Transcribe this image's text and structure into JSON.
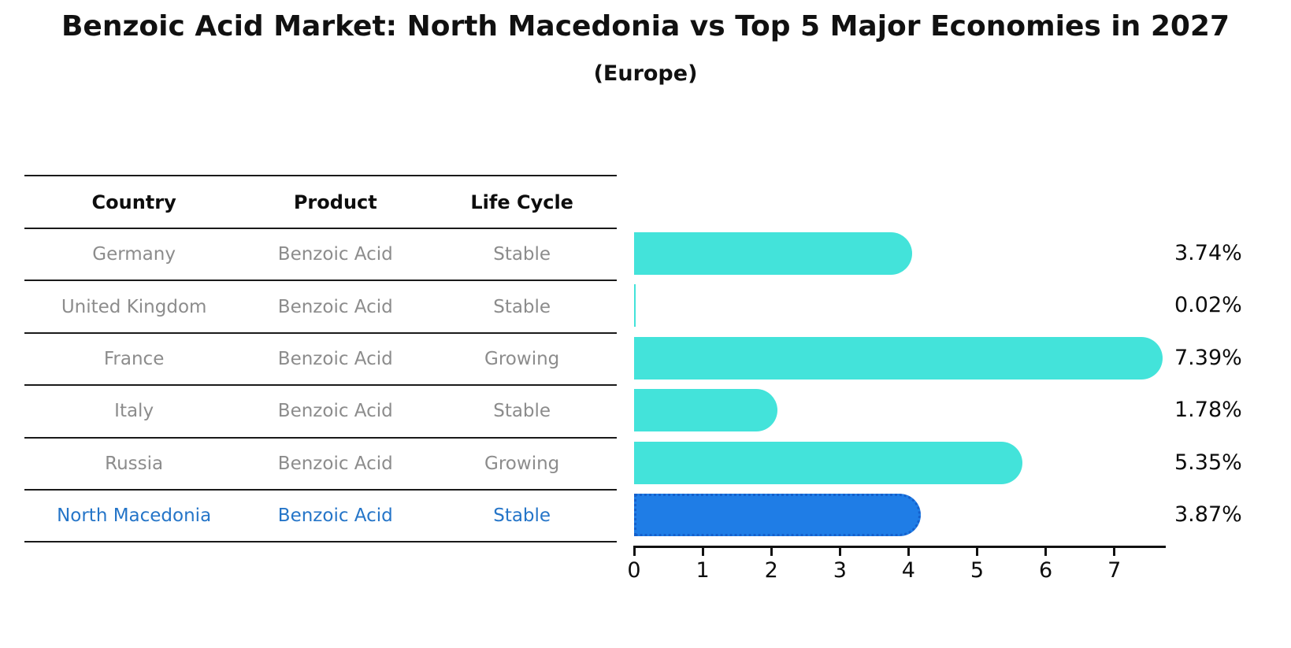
{
  "title": "Benzoic Acid Market: North Macedonia vs Top 5 Major Economies in 2027",
  "subtitle": "(Europe)",
  "table": {
    "headers": [
      "Country",
      "Product",
      "Life Cycle"
    ],
    "rows": [
      {
        "country": "Germany",
        "product": "Benzoic Acid",
        "life_cycle": "Stable",
        "highlight": false
      },
      {
        "country": "United Kingdom",
        "product": "Benzoic Acid",
        "life_cycle": "Stable",
        "highlight": false
      },
      {
        "country": "France",
        "product": "Benzoic Acid",
        "life_cycle": "Growing",
        "highlight": false
      },
      {
        "country": "Italy",
        "product": "Benzoic Acid",
        "life_cycle": "Stable",
        "highlight": false
      },
      {
        "country": "Russia",
        "product": "Benzoic Acid",
        "life_cycle": "Growing",
        "highlight": false
      },
      {
        "country": "North Macedonia",
        "product": "Benzoic Acid",
        "life_cycle": "Stable",
        "highlight": true
      }
    ]
  },
  "chart_data": {
    "type": "bar",
    "orientation": "horizontal",
    "title": "Benzoic Acid Market: North Macedonia vs Top 5 Major Economies in 2027 (Europe)",
    "categories": [
      "Germany",
      "United Kingdom",
      "France",
      "Italy",
      "Russia",
      "North Macedonia"
    ],
    "values": [
      3.74,
      0.02,
      7.39,
      1.78,
      5.35,
      3.87
    ],
    "value_labels": [
      "3.74%",
      "0.02%",
      "7.39%",
      "1.78%",
      "5.35%",
      "3.87%"
    ],
    "xlim": [
      0,
      7.75
    ],
    "x_ticks": [
      0,
      1,
      2,
      3,
      4,
      5,
      6,
      7
    ],
    "grid": false,
    "legend": false,
    "highlight_index": 5
  },
  "colors": {
    "bar": "#43e3da",
    "highlight_bar": "#1f7de6",
    "highlight_bar_border": "#1560cc",
    "highlight_text": "#2575c8",
    "table_text": "#8c8c8c",
    "line": "#1a1a1a"
  }
}
